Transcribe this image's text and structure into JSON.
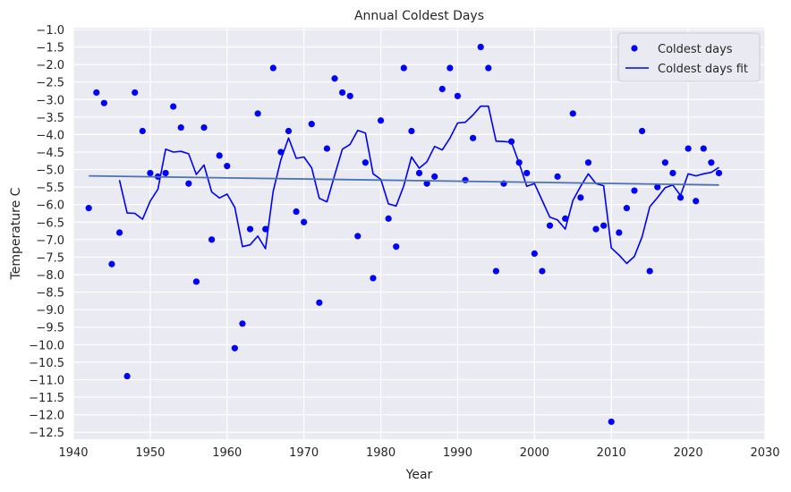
{
  "chart_data": {
    "type": "scatter",
    "title": "Annual Coldest Days",
    "xlabel": "Year",
    "ylabel": "Temperature C",
    "xlim": [
      1940,
      2030
    ],
    "ylim": [
      -12.7,
      -0.95
    ],
    "xticks": [
      1940,
      1950,
      1960,
      1970,
      1980,
      1990,
      2000,
      2010,
      2020,
      2030
    ],
    "yticks": [
      -1.0,
      -1.5,
      -2.0,
      -2.5,
      -3.0,
      -3.5,
      -4.0,
      -4.5,
      -5.0,
      -5.5,
      -6.0,
      -6.5,
      -7.0,
      -7.5,
      -8.0,
      -8.5,
      -9.0,
      -9.5,
      -10.0,
      -10.5,
      -11.0,
      -11.5,
      -12.0,
      -12.5
    ],
    "grid": true,
    "legend_position": "top-right",
    "background_color": "#eaeaf2",
    "series": [
      {
        "name": "Coldest days",
        "kind": "scatter",
        "color": "#0000ff",
        "x": [
          1942,
          1943,
          1944,
          1945,
          1946,
          1947,
          1948,
          1949,
          1950,
          1951,
          1952,
          1953,
          1954,
          1955,
          1956,
          1957,
          1958,
          1959,
          1960,
          1961,
          1962,
          1963,
          1964,
          1965,
          1966,
          1967,
          1968,
          1969,
          1970,
          1971,
          1972,
          1973,
          1974,
          1975,
          1976,
          1977,
          1978,
          1979,
          1980,
          1981,
          1982,
          1983,
          1984,
          1985,
          1986,
          1987,
          1988,
          1989,
          1990,
          1991,
          1992,
          1993,
          1994,
          1995,
          1996,
          1997,
          1998,
          1999,
          2000,
          2001,
          2002,
          2003,
          2004,
          2005,
          2006,
          2007,
          2008,
          2009,
          2010,
          2011,
          2012,
          2013,
          2014,
          2015,
          2016,
          2017,
          2018,
          2019,
          2020,
          2021,
          2022,
          2023,
          2024
        ],
        "y": [
          -6.1,
          -2.8,
          -3.1,
          -7.7,
          -6.8,
          -10.9,
          -2.8,
          -3.9,
          -5.1,
          -5.2,
          -5.1,
          -3.2,
          -3.8,
          -5.4,
          -8.2,
          -3.8,
          -7.0,
          -4.6,
          -4.9,
          -10.1,
          -9.4,
          -6.7,
          -3.4,
          -6.7,
          -2.1,
          -4.5,
          -3.9,
          -6.2,
          -6.5,
          -3.7,
          -8.8,
          -4.4,
          -2.4,
          -2.8,
          -2.9,
          -6.9,
          -4.8,
          -8.1,
          -3.6,
          -6.4,
          -7.2,
          -2.1,
          -3.9,
          -5.1,
          -5.4,
          -5.2,
          -2.7,
          -2.1,
          -2.9,
          -5.3,
          -4.1,
          -1.5,
          -2.1,
          -7.9,
          -5.4,
          -4.2,
          -4.8,
          -5.1,
          -7.4,
          -7.9,
          -6.6,
          -5.2,
          -6.4,
          -3.4,
          -5.8,
          -4.8,
          -6.7,
          -6.6,
          -12.2,
          -6.8,
          -6.1,
          -5.6,
          -3.9,
          -7.9,
          -5.5,
          -4.8,
          -5.1,
          -5.8,
          -4.4,
          -5.9,
          -4.4,
          -4.8,
          -5.1
        ]
      },
      {
        "name": "Coldest days fit",
        "kind": "line",
        "color": "#0000ff",
        "x": [
          1946,
          1947,
          1948,
          1949,
          1950,
          1951,
          1952,
          1953,
          1954,
          1955,
          1956,
          1957,
          1958,
          1959,
          1960,
          1961,
          1962,
          1963,
          1964,
          1965,
          1966,
          1967,
          1968,
          1969,
          1970,
          1971,
          1972,
          1973,
          1974,
          1975,
          1976,
          1977,
          1978,
          1979,
          1980,
          1981,
          1982,
          1983,
          1984,
          1985,
          1986,
          1987,
          1988,
          1989,
          1990,
          1991,
          1992,
          1993,
          1994,
          1995,
          1996,
          1997,
          1998,
          1999,
          2000,
          2001,
          2002,
          2003,
          2004,
          2005,
          2006,
          2007,
          2008,
          2009,
          2010,
          2011,
          2012,
          2013,
          2014,
          2015,
          2016,
          2017,
          2018,
          2019,
          2020,
          2021,
          2022,
          2023,
          2024
        ],
        "y": [
          -5.3,
          -6.24,
          -6.25,
          -6.42,
          -5.9,
          -5.56,
          -4.42,
          -4.5,
          -4.48,
          -4.55,
          -5.14,
          -4.87,
          -5.64,
          -5.81,
          -5.7,
          -6.08,
          -7.2,
          -7.15,
          -6.9,
          -7.26,
          -5.62,
          -4.72,
          -4.1,
          -4.68,
          -4.64,
          -4.95,
          -5.82,
          -5.92,
          -5.16,
          -4.42,
          -4.28,
          -3.88,
          -3.96,
          -5.12,
          -5.28,
          -5.98,
          -6.04,
          -5.46,
          -4.64,
          -4.96,
          -4.78,
          -4.34,
          -4.44,
          -4.1,
          -3.67,
          -3.65,
          -3.44,
          -3.19,
          -3.19,
          -4.19,
          -4.2,
          -4.22,
          -4.82,
          -5.48,
          -5.4,
          -5.88,
          -6.36,
          -6.44,
          -6.7,
          -5.88,
          -5.48,
          -5.12,
          -5.4,
          -5.46,
          -7.24,
          -7.44,
          -7.68,
          -7.48,
          -6.92,
          -6.06,
          -5.8,
          -5.52,
          -5.44,
          -5.74,
          -5.12,
          -5.18,
          -5.12,
          -5.08,
          -4.94
        ]
      },
      {
        "name": "",
        "kind": "trend",
        "color": "#4c72b0",
        "x": [
          1942,
          2024
        ],
        "y": [
          -5.18,
          -5.44
        ]
      }
    ]
  }
}
